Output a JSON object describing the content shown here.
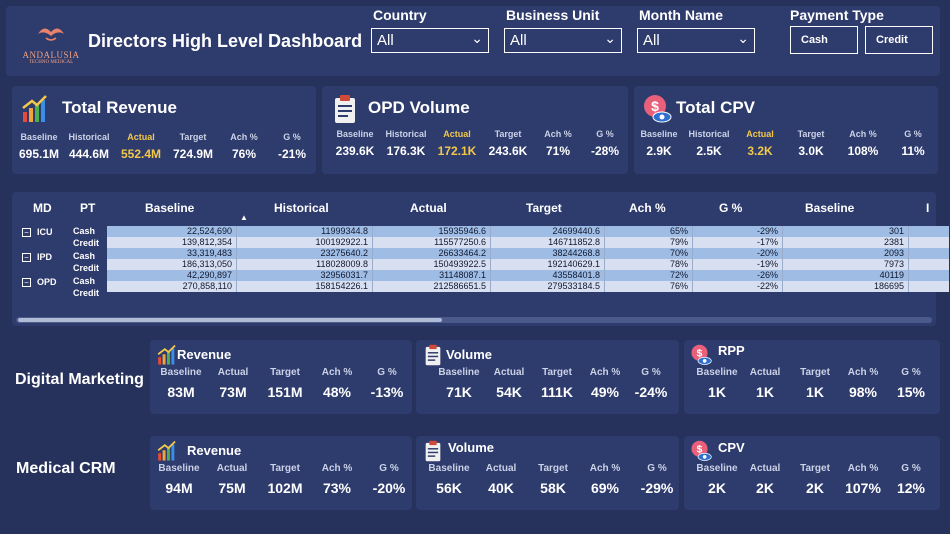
{
  "header": {
    "logo_name": "ANDALUSIA",
    "logo_sub": "TECHNO MEDICAL",
    "title": "Directors High Level Dashboard",
    "filters": [
      {
        "label": "Country",
        "value": "All"
      },
      {
        "label": "Business Unit",
        "value": "All"
      },
      {
        "label": "Month Name",
        "value": "All"
      }
    ],
    "payment_label": "Payment Type",
    "payment_options": [
      "Cash",
      "Credit"
    ]
  },
  "kpi_labels": {
    "baseline": "Baseline",
    "historical": "Historical",
    "actual": "Actual",
    "target": "Target",
    "ach": "Ach %",
    "g": "G %"
  },
  "kpis": [
    {
      "title": "Total Revenue",
      "icon": "growth-chart-icon",
      "baseline": "695.1M",
      "historical": "444.6M",
      "actual": "552.4M",
      "target": "724.9M",
      "ach": "76%",
      "g": "-21%"
    },
    {
      "title": "OPD Volume",
      "icon": "clipboard-icon",
      "baseline": "239.6K",
      "historical": "176.3K",
      "actual": "172.1K",
      "target": "243.6K",
      "ach": "71%",
      "g": "-28%"
    },
    {
      "title": "Total CPV",
      "icon": "dollar-eye-icon",
      "baseline": "2.9K",
      "historical": "2.5K",
      "actual": "3.2K",
      "target": "3.0K",
      "ach": "108%",
      "g": "11%"
    }
  ],
  "table": {
    "headers": [
      "MD",
      "PT",
      "Baseline",
      "Historical",
      "Actual",
      "Target",
      "Ach %",
      "G %",
      "Baseline",
      "I"
    ],
    "groups": [
      "ICU",
      "IPD",
      "OPD"
    ],
    "rows": [
      {
        "pt": "Cash",
        "baseline": "22,524,690",
        "historical": "11999344.8",
        "actual": "15935946.6",
        "target": "24699440.6",
        "ach": "65%",
        "g": "-29%",
        "baseline2": "301"
      },
      {
        "pt": "Credit",
        "baseline": "139,812,354",
        "historical": "100192922.1",
        "actual": "115577250.6",
        "target": "146711852.8",
        "ach": "79%",
        "g": "-17%",
        "baseline2": "2381"
      },
      {
        "pt": "Cash",
        "baseline": "33,319,483",
        "historical": "23275640.2",
        "actual": "26633464.2",
        "target": "38244268.8",
        "ach": "70%",
        "g": "-20%",
        "baseline2": "2093"
      },
      {
        "pt": "Credit",
        "baseline": "186,313,050",
        "historical": "118028009.8",
        "actual": "150493922.5",
        "target": "192140629.1",
        "ach": "78%",
        "g": "-19%",
        "baseline2": "7973"
      },
      {
        "pt": "Cash",
        "baseline": "42,290,897",
        "historical": "32956031.7",
        "actual": "31148087.1",
        "target": "43558401.8",
        "ach": "72%",
        "g": "-26%",
        "baseline2": "40119"
      },
      {
        "pt": "Credit",
        "baseline": "270,858,110",
        "historical": "158154226.1",
        "actual": "212586651.5",
        "target": "279533184.5",
        "ach": "76%",
        "g": "-22%",
        "baseline2": "186695"
      }
    ]
  },
  "mini_labels": {
    "baseline": "Baseline",
    "actual": "Actual",
    "target": "Target",
    "ach": "Ach %",
    "g": "G %"
  },
  "digital": {
    "label": "Digital Marketing",
    "cards": [
      {
        "title": "Revenue",
        "icon": "growth-chart-icon",
        "baseline": "83M",
        "actual": "73M",
        "target": "151M",
        "ach": "48%",
        "g": "-13%"
      },
      {
        "title": "Volume",
        "icon": "clipboard-icon",
        "baseline": "71K",
        "actual": "54K",
        "target": "111K",
        "ach": "49%",
        "g": "-24%"
      },
      {
        "title": "RPP",
        "icon": "dollar-eye-icon",
        "baseline": "1K",
        "actual": "1K",
        "target": "1K",
        "ach": "98%",
        "g": "15%"
      }
    ]
  },
  "crm": {
    "label": "Medical CRM",
    "cards": [
      {
        "title": "Revenue",
        "icon": "growth-chart-icon",
        "baseline": "94M",
        "actual": "75M",
        "target": "102M",
        "ach": "73%",
        "g": "-20%"
      },
      {
        "title": "Volume",
        "icon": "clipboard-icon",
        "baseline": "56K",
        "actual": "40K",
        "target": "58K",
        "ach": "69%",
        "g": "-29%"
      },
      {
        "title": "CPV",
        "icon": "dollar-eye-icon",
        "baseline": "2K",
        "actual": "2K",
        "target": "2K",
        "ach": "107%",
        "g": "12%"
      }
    ]
  }
}
